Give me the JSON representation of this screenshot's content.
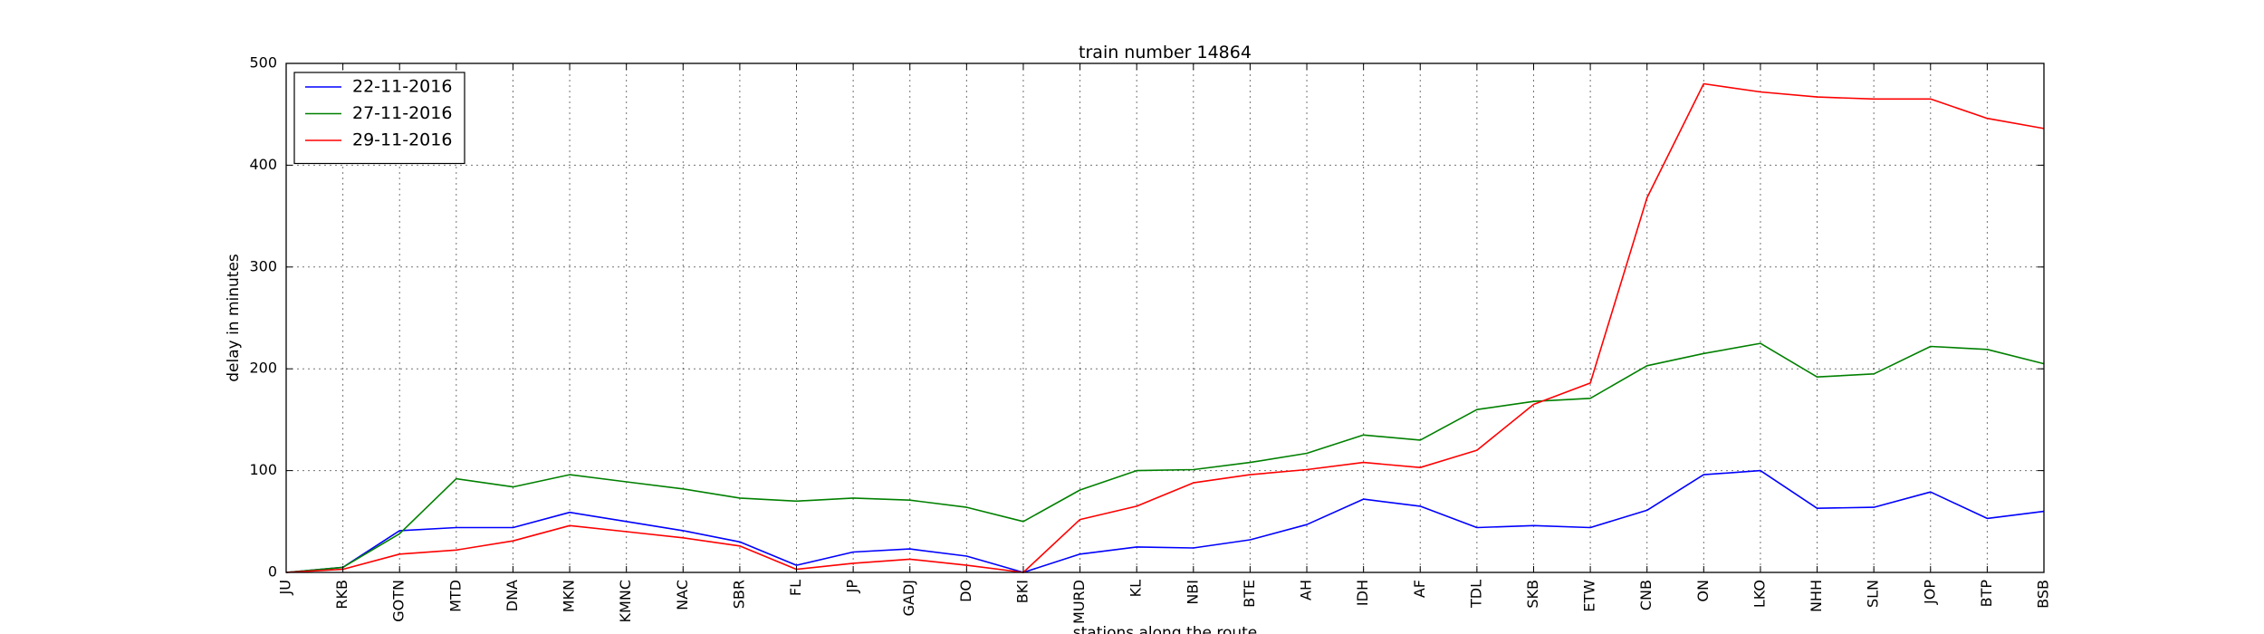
{
  "chart_data": {
    "type": "line",
    "title": "train number 14864",
    "xlabel": "stations along the route",
    "ylabel": "delay in minutes",
    "ylim": [
      0,
      500
    ],
    "yticks": [
      0,
      100,
      200,
      300,
      400,
      500
    ],
    "grid": true,
    "legend_position": "top-left",
    "categories": [
      "JU",
      "RKB",
      "GOTN",
      "MTD",
      "DNA",
      "MKN",
      "KMNC",
      "NAC",
      "SBR",
      "FL",
      "JP",
      "GADJ",
      "DO",
      "BKI",
      "MURD",
      "KL",
      "NBI",
      "BTE",
      "AH",
      "IDH",
      "AF",
      "TDL",
      "SKB",
      "ETW",
      "CNB",
      "ON",
      "LKO",
      "NHH",
      "SLN",
      "JOP",
      "BTP",
      "BSB"
    ],
    "series": [
      {
        "name": "22-11-2016",
        "color": "#0000ff",
        "values": [
          0,
          5,
          41,
          44,
          44,
          59,
          50,
          41,
          30,
          7,
          20,
          23,
          16,
          0,
          18,
          25,
          24,
          32,
          47,
          72,
          65,
          44,
          46,
          44,
          61,
          96,
          100,
          63,
          64,
          79,
          53,
          60
        ]
      },
      {
        "name": "27-11-2016",
        "color": "#008000",
        "values": [
          0,
          5,
          38,
          92,
          84,
          96,
          89,
          82,
          73,
          70,
          73,
          71,
          64,
          50,
          81,
          100,
          101,
          108,
          117,
          135,
          130,
          160,
          168,
          171,
          203,
          215,
          225,
          192,
          195,
          222,
          219,
          205
        ]
      },
      {
        "name": "29-11-2016",
        "color": "#ff0000",
        "values": [
          0,
          3,
          18,
          22,
          31,
          46,
          40,
          34,
          26,
          3,
          9,
          13,
          7,
          0,
          52,
          65,
          88,
          96,
          101,
          108,
          103,
          120,
          165,
          186,
          368,
          480,
          472,
          467,
          465,
          465,
          446,
          436
        ]
      }
    ]
  }
}
